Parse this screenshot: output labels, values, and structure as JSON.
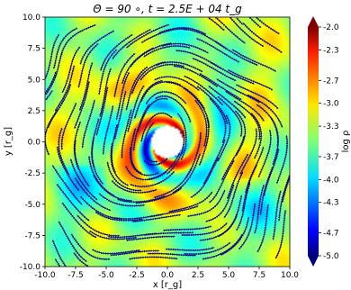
{
  "chart_data": {
    "type": "heatmap",
    "title": "Θ = 90 ∘, t = 2.5E + 04 t_g",
    "xlabel": "x [r_g]",
    "ylabel": "y [r_g]",
    "xlim": [
      -10.0,
      10.0
    ],
    "ylim": [
      -10.0,
      10.0
    ],
    "x_ticks": [
      "-10.0",
      "-7.5",
      "-5.0",
      "-2.5",
      "0.0",
      "2.5",
      "5.0",
      "7.5",
      "10.0"
    ],
    "y_ticks": [
      "-10.0",
      "-7.5",
      "-5.0",
      "-2.5",
      "0.0",
      "2.5",
      "5.0",
      "7.5",
      "10.0"
    ],
    "colorbar": {
      "label": "log ρ",
      "range": [
        -5.0,
        -2.0
      ],
      "ticks": [
        "-2.0",
        "-2.3",
        "-2.7",
        "-3.0",
        "-3.3",
        "-3.7",
        "-4.0",
        "-4.3",
        "-4.7",
        "-5.0"
      ],
      "colormap": "jet",
      "extend": "both"
    },
    "field": {
      "description": "density map with spiral arms around central black hole",
      "background_log_rho": -3.4,
      "spiral_arms": 2,
      "inner_radius": 1.3
    },
    "overlay": "streamlines",
    "streamline_color": "#0a0a80",
    "hole_color": "#ffffff"
  }
}
